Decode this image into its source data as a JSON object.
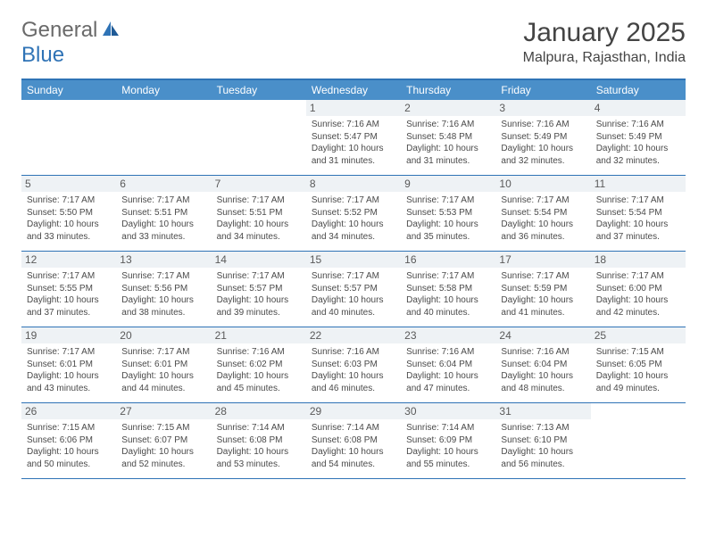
{
  "logo": {
    "text1": "General",
    "text2": "Blue"
  },
  "title": "January 2025",
  "location": "Malpura, Rajasthan, India",
  "colors": {
    "header_bg": "#4a8fc9",
    "border": "#2f73b6",
    "daynum_bg": "#eef2f5",
    "text": "#4a4a4a"
  },
  "day_names": [
    "Sunday",
    "Monday",
    "Tuesday",
    "Wednesday",
    "Thursday",
    "Friday",
    "Saturday"
  ],
  "weeks": [
    [
      {
        "n": "",
        "sr": "",
        "ss": "",
        "dl": ""
      },
      {
        "n": "",
        "sr": "",
        "ss": "",
        "dl": ""
      },
      {
        "n": "",
        "sr": "",
        "ss": "",
        "dl": ""
      },
      {
        "n": "1",
        "sr": "Sunrise: 7:16 AM",
        "ss": "Sunset: 5:47 PM",
        "dl": "Daylight: 10 hours and 31 minutes."
      },
      {
        "n": "2",
        "sr": "Sunrise: 7:16 AM",
        "ss": "Sunset: 5:48 PM",
        "dl": "Daylight: 10 hours and 31 minutes."
      },
      {
        "n": "3",
        "sr": "Sunrise: 7:16 AM",
        "ss": "Sunset: 5:49 PM",
        "dl": "Daylight: 10 hours and 32 minutes."
      },
      {
        "n": "4",
        "sr": "Sunrise: 7:16 AM",
        "ss": "Sunset: 5:49 PM",
        "dl": "Daylight: 10 hours and 32 minutes."
      }
    ],
    [
      {
        "n": "5",
        "sr": "Sunrise: 7:17 AM",
        "ss": "Sunset: 5:50 PM",
        "dl": "Daylight: 10 hours and 33 minutes."
      },
      {
        "n": "6",
        "sr": "Sunrise: 7:17 AM",
        "ss": "Sunset: 5:51 PM",
        "dl": "Daylight: 10 hours and 33 minutes."
      },
      {
        "n": "7",
        "sr": "Sunrise: 7:17 AM",
        "ss": "Sunset: 5:51 PM",
        "dl": "Daylight: 10 hours and 34 minutes."
      },
      {
        "n": "8",
        "sr": "Sunrise: 7:17 AM",
        "ss": "Sunset: 5:52 PM",
        "dl": "Daylight: 10 hours and 34 minutes."
      },
      {
        "n": "9",
        "sr": "Sunrise: 7:17 AM",
        "ss": "Sunset: 5:53 PM",
        "dl": "Daylight: 10 hours and 35 minutes."
      },
      {
        "n": "10",
        "sr": "Sunrise: 7:17 AM",
        "ss": "Sunset: 5:54 PM",
        "dl": "Daylight: 10 hours and 36 minutes."
      },
      {
        "n": "11",
        "sr": "Sunrise: 7:17 AM",
        "ss": "Sunset: 5:54 PM",
        "dl": "Daylight: 10 hours and 37 minutes."
      }
    ],
    [
      {
        "n": "12",
        "sr": "Sunrise: 7:17 AM",
        "ss": "Sunset: 5:55 PM",
        "dl": "Daylight: 10 hours and 37 minutes."
      },
      {
        "n": "13",
        "sr": "Sunrise: 7:17 AM",
        "ss": "Sunset: 5:56 PM",
        "dl": "Daylight: 10 hours and 38 minutes."
      },
      {
        "n": "14",
        "sr": "Sunrise: 7:17 AM",
        "ss": "Sunset: 5:57 PM",
        "dl": "Daylight: 10 hours and 39 minutes."
      },
      {
        "n": "15",
        "sr": "Sunrise: 7:17 AM",
        "ss": "Sunset: 5:57 PM",
        "dl": "Daylight: 10 hours and 40 minutes."
      },
      {
        "n": "16",
        "sr": "Sunrise: 7:17 AM",
        "ss": "Sunset: 5:58 PM",
        "dl": "Daylight: 10 hours and 40 minutes."
      },
      {
        "n": "17",
        "sr": "Sunrise: 7:17 AM",
        "ss": "Sunset: 5:59 PM",
        "dl": "Daylight: 10 hours and 41 minutes."
      },
      {
        "n": "18",
        "sr": "Sunrise: 7:17 AM",
        "ss": "Sunset: 6:00 PM",
        "dl": "Daylight: 10 hours and 42 minutes."
      }
    ],
    [
      {
        "n": "19",
        "sr": "Sunrise: 7:17 AM",
        "ss": "Sunset: 6:01 PM",
        "dl": "Daylight: 10 hours and 43 minutes."
      },
      {
        "n": "20",
        "sr": "Sunrise: 7:17 AM",
        "ss": "Sunset: 6:01 PM",
        "dl": "Daylight: 10 hours and 44 minutes."
      },
      {
        "n": "21",
        "sr": "Sunrise: 7:16 AM",
        "ss": "Sunset: 6:02 PM",
        "dl": "Daylight: 10 hours and 45 minutes."
      },
      {
        "n": "22",
        "sr": "Sunrise: 7:16 AM",
        "ss": "Sunset: 6:03 PM",
        "dl": "Daylight: 10 hours and 46 minutes."
      },
      {
        "n": "23",
        "sr": "Sunrise: 7:16 AM",
        "ss": "Sunset: 6:04 PM",
        "dl": "Daylight: 10 hours and 47 minutes."
      },
      {
        "n": "24",
        "sr": "Sunrise: 7:16 AM",
        "ss": "Sunset: 6:04 PM",
        "dl": "Daylight: 10 hours and 48 minutes."
      },
      {
        "n": "25",
        "sr": "Sunrise: 7:15 AM",
        "ss": "Sunset: 6:05 PM",
        "dl": "Daylight: 10 hours and 49 minutes."
      }
    ],
    [
      {
        "n": "26",
        "sr": "Sunrise: 7:15 AM",
        "ss": "Sunset: 6:06 PM",
        "dl": "Daylight: 10 hours and 50 minutes."
      },
      {
        "n": "27",
        "sr": "Sunrise: 7:15 AM",
        "ss": "Sunset: 6:07 PM",
        "dl": "Daylight: 10 hours and 52 minutes."
      },
      {
        "n": "28",
        "sr": "Sunrise: 7:14 AM",
        "ss": "Sunset: 6:08 PM",
        "dl": "Daylight: 10 hours and 53 minutes."
      },
      {
        "n": "29",
        "sr": "Sunrise: 7:14 AM",
        "ss": "Sunset: 6:08 PM",
        "dl": "Daylight: 10 hours and 54 minutes."
      },
      {
        "n": "30",
        "sr": "Sunrise: 7:14 AM",
        "ss": "Sunset: 6:09 PM",
        "dl": "Daylight: 10 hours and 55 minutes."
      },
      {
        "n": "31",
        "sr": "Sunrise: 7:13 AM",
        "ss": "Sunset: 6:10 PM",
        "dl": "Daylight: 10 hours and 56 minutes."
      },
      {
        "n": "",
        "sr": "",
        "ss": "",
        "dl": ""
      }
    ]
  ]
}
